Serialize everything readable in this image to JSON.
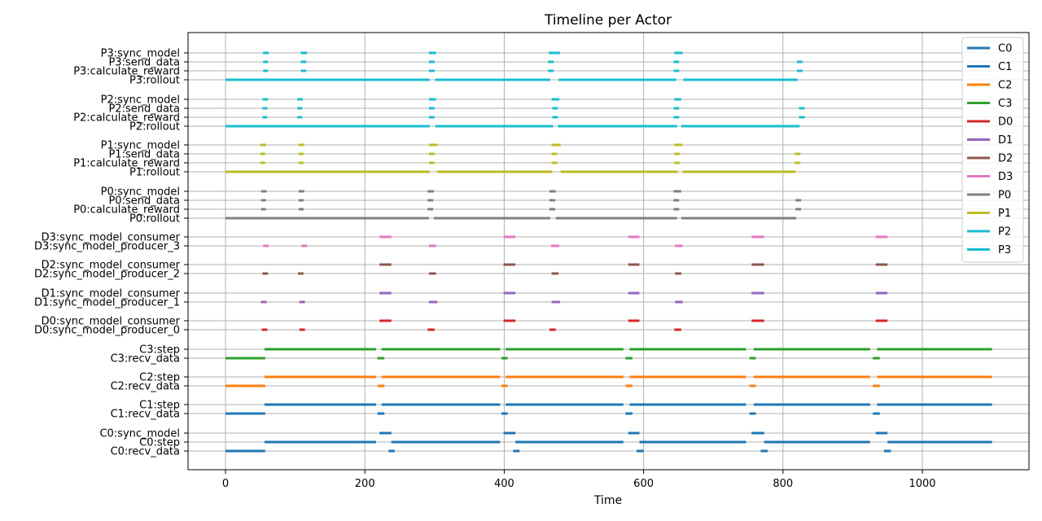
{
  "chart_data": {
    "type": "timeline",
    "title": "Timeline per Actor",
    "xlabel": "Time",
    "xlim": [
      -55,
      1155
    ],
    "x_ticks": [
      0,
      200,
      400,
      600,
      800,
      1000
    ],
    "grid": true,
    "legend_position": "top-right",
    "series": [
      {
        "name": "C0",
        "color": "#1f77b4"
      },
      {
        "name": "C1",
        "color": "#1f77b4"
      },
      {
        "name": "C2",
        "color": "#ff7f0e"
      },
      {
        "name": "C3",
        "color": "#2ca02c"
      },
      {
        "name": "D0",
        "color": "#d62728"
      },
      {
        "name": "D1",
        "color": "#9467bd"
      },
      {
        "name": "D2",
        "color": "#8c564b"
      },
      {
        "name": "D3",
        "color": "#e377c2"
      },
      {
        "name": "P0",
        "color": "#7f7f7f"
      },
      {
        "name": "P1",
        "color": "#bcbd22"
      },
      {
        "name": "P2",
        "color": "#17becf"
      },
      {
        "name": "P3",
        "color": "#17becf"
      }
    ],
    "rows": [
      {
        "label": "P3:sync_model",
        "actor": "P3",
        "segments": [
          [
            54,
            62
          ],
          [
            108,
            117
          ],
          [
            292,
            302
          ],
          [
            464,
            480
          ],
          [
            644,
            656
          ]
        ]
      },
      {
        "label": "P3:send_data",
        "actor": "P3",
        "segments": [
          [
            54,
            61
          ],
          [
            108,
            116
          ],
          [
            292,
            300
          ],
          [
            463,
            471
          ],
          [
            643,
            651
          ],
          [
            820,
            828
          ]
        ]
      },
      {
        "label": "P3:calculate_reward",
        "actor": "P3",
        "segments": [
          [
            54,
            61
          ],
          [
            108,
            116
          ],
          [
            292,
            300
          ],
          [
            463,
            471
          ],
          [
            643,
            651
          ],
          [
            820,
            828
          ]
        ]
      },
      {
        "label": "P3:rollout",
        "actor": "P3",
        "segments": [
          [
            0,
            293
          ],
          [
            301,
            466
          ],
          [
            478,
            647
          ],
          [
            657,
            821
          ]
        ]
      },
      {
        "label": "P2:sync_model",
        "actor": "P2",
        "segments": [
          [
            53,
            61
          ],
          [
            103,
            111
          ],
          [
            292,
            302
          ],
          [
            468,
            479
          ],
          [
            644,
            654
          ]
        ]
      },
      {
        "label": "P2:send_data",
        "actor": "P2",
        "segments": [
          [
            53,
            60
          ],
          [
            103,
            110
          ],
          [
            292,
            300
          ],
          [
            469,
            477
          ],
          [
            643,
            651
          ],
          [
            823,
            831
          ]
        ]
      },
      {
        "label": "P2:calculate_reward",
        "actor": "P2",
        "segments": [
          [
            53,
            60
          ],
          [
            103,
            110
          ],
          [
            292,
            300
          ],
          [
            469,
            477
          ],
          [
            643,
            651
          ],
          [
            823,
            831
          ]
        ]
      },
      {
        "label": "P2:rollout",
        "actor": "P2",
        "segments": [
          [
            0,
            293
          ],
          [
            301,
            470
          ],
          [
            477,
            648
          ],
          [
            654,
            824
          ]
        ]
      },
      {
        "label": "P1:sync_model",
        "actor": "P1",
        "segments": [
          [
            50,
            58
          ],
          [
            105,
            113
          ],
          [
            292,
            304
          ],
          [
            468,
            481
          ],
          [
            644,
            656
          ]
        ]
      },
      {
        "label": "P1:send_data",
        "actor": "P1",
        "segments": [
          [
            50,
            57
          ],
          [
            105,
            112
          ],
          [
            292,
            300
          ],
          [
            468,
            476
          ],
          [
            644,
            652
          ],
          [
            817,
            825
          ]
        ]
      },
      {
        "label": "P1:calculate_reward",
        "actor": "P1",
        "segments": [
          [
            50,
            57
          ],
          [
            105,
            112
          ],
          [
            292,
            300
          ],
          [
            468,
            476
          ],
          [
            644,
            652
          ],
          [
            817,
            825
          ]
        ]
      },
      {
        "label": "P1:rollout",
        "actor": "P1",
        "segments": [
          [
            0,
            293
          ],
          [
            304,
            469
          ],
          [
            481,
            649
          ],
          [
            656,
            818
          ]
        ]
      },
      {
        "label": "P0:sync_model",
        "actor": "P0",
        "segments": [
          [
            51,
            59
          ],
          [
            105,
            113
          ],
          [
            290,
            299
          ],
          [
            465,
            474
          ],
          [
            643,
            654
          ]
        ]
      },
      {
        "label": "P0:send_data",
        "actor": "P0",
        "segments": [
          [
            51,
            58
          ],
          [
            105,
            112
          ],
          [
            290,
            298
          ],
          [
            465,
            473
          ],
          [
            643,
            651
          ],
          [
            818,
            826
          ]
        ]
      },
      {
        "label": "P0:calculate_reward",
        "actor": "P0",
        "segments": [
          [
            51,
            58
          ],
          [
            105,
            112
          ],
          [
            290,
            298
          ],
          [
            465,
            473
          ],
          [
            643,
            651
          ],
          [
            818,
            826
          ]
        ]
      },
      {
        "label": "P0:rollout",
        "actor": "P0",
        "segments": [
          [
            0,
            292
          ],
          [
            299,
            466
          ],
          [
            474,
            648
          ],
          [
            654,
            819
          ]
        ]
      },
      {
        "label": "D3:sync_model_consumer",
        "actor": "D3",
        "segments": [
          [
            221,
            238
          ],
          [
            399,
            416
          ],
          [
            578,
            594
          ],
          [
            755,
            773
          ],
          [
            933,
            950
          ]
        ]
      },
      {
        "label": "D3:sync_model_producer_3",
        "actor": "D3",
        "segments": [
          [
            54,
            62
          ],
          [
            109,
            117
          ],
          [
            292,
            302
          ],
          [
            467,
            479
          ],
          [
            645,
            656
          ]
        ]
      },
      {
        "label": "D2:sync_model_consumer",
        "actor": "D2",
        "segments": [
          [
            221,
            238
          ],
          [
            399,
            416
          ],
          [
            578,
            594
          ],
          [
            755,
            773
          ],
          [
            933,
            950
          ]
        ]
      },
      {
        "label": "D2:sync_model_producer_2",
        "actor": "D2",
        "segments": [
          [
            53,
            61
          ],
          [
            104,
            112
          ],
          [
            292,
            302
          ],
          [
            468,
            478
          ],
          [
            645,
            654
          ]
        ]
      },
      {
        "label": "D1:sync_model_consumer",
        "actor": "D1",
        "segments": [
          [
            221,
            238
          ],
          [
            399,
            416
          ],
          [
            578,
            594
          ],
          [
            755,
            773
          ],
          [
            933,
            950
          ]
        ]
      },
      {
        "label": "D1:sync_model_producer_1",
        "actor": "D1",
        "segments": [
          [
            51,
            59
          ],
          [
            106,
            114
          ],
          [
            292,
            304
          ],
          [
            468,
            480
          ],
          [
            645,
            656
          ]
        ]
      },
      {
        "label": "D0:sync_model_consumer",
        "actor": "D0",
        "segments": [
          [
            221,
            238
          ],
          [
            399,
            416
          ],
          [
            578,
            594
          ],
          [
            755,
            773
          ],
          [
            933,
            950
          ]
        ]
      },
      {
        "label": "D0:sync_model_producer_0",
        "actor": "D0",
        "segments": [
          [
            52,
            60
          ],
          [
            106,
            114
          ],
          [
            290,
            300
          ],
          [
            465,
            474
          ],
          [
            644,
            654
          ]
        ]
      },
      {
        "label": "C3:step",
        "actor": "C3",
        "segments": [
          [
            56,
            216
          ],
          [
            224,
            394
          ],
          [
            402,
            571
          ],
          [
            580,
            747
          ],
          [
            758,
            925
          ],
          [
            935,
            1100
          ]
        ]
      },
      {
        "label": "C3:recv_data",
        "actor": "C3",
        "segments": [
          [
            0,
            57
          ],
          [
            218,
            228
          ],
          [
            396,
            405
          ],
          [
            574,
            584
          ],
          [
            752,
            761
          ],
          [
            929,
            939
          ]
        ]
      },
      {
        "label": "C2:step",
        "actor": "C2",
        "segments": [
          [
            56,
            216
          ],
          [
            224,
            394
          ],
          [
            402,
            571
          ],
          [
            580,
            747
          ],
          [
            758,
            925
          ],
          [
            935,
            1100
          ]
        ]
      },
      {
        "label": "C2:recv_data",
        "actor": "C2",
        "segments": [
          [
            0,
            57
          ],
          [
            218,
            228
          ],
          [
            396,
            405
          ],
          [
            574,
            584
          ],
          [
            752,
            761
          ],
          [
            929,
            939
          ]
        ]
      },
      {
        "label": "C1:step",
        "actor": "C1",
        "segments": [
          [
            56,
            216
          ],
          [
            224,
            394
          ],
          [
            402,
            571
          ],
          [
            580,
            747
          ],
          [
            758,
            925
          ],
          [
            935,
            1100
          ]
        ]
      },
      {
        "label": "C1:recv_data",
        "actor": "C1",
        "segments": [
          [
            0,
            57
          ],
          [
            218,
            228
          ],
          [
            396,
            405
          ],
          [
            574,
            584
          ],
          [
            752,
            761
          ],
          [
            929,
            939
          ]
        ]
      },
      {
        "label": "C0:sync_model",
        "actor": "C0",
        "segments": [
          [
            221,
            238
          ],
          [
            399,
            416
          ],
          [
            578,
            594
          ],
          [
            755,
            773
          ],
          [
            933,
            950
          ]
        ]
      },
      {
        "label": "C0:step",
        "actor": "C0",
        "segments": [
          [
            56,
            216
          ],
          [
            238,
            394
          ],
          [
            416,
            571
          ],
          [
            594,
            747
          ],
          [
            773,
            925
          ],
          [
            950,
            1100
          ]
        ]
      },
      {
        "label": "C0:recv_data",
        "actor": "C0",
        "segments": [
          [
            0,
            57
          ],
          [
            234,
            243
          ],
          [
            413,
            422
          ],
          [
            590,
            600
          ],
          [
            768,
            778
          ],
          [
            945,
            955
          ]
        ]
      }
    ]
  }
}
